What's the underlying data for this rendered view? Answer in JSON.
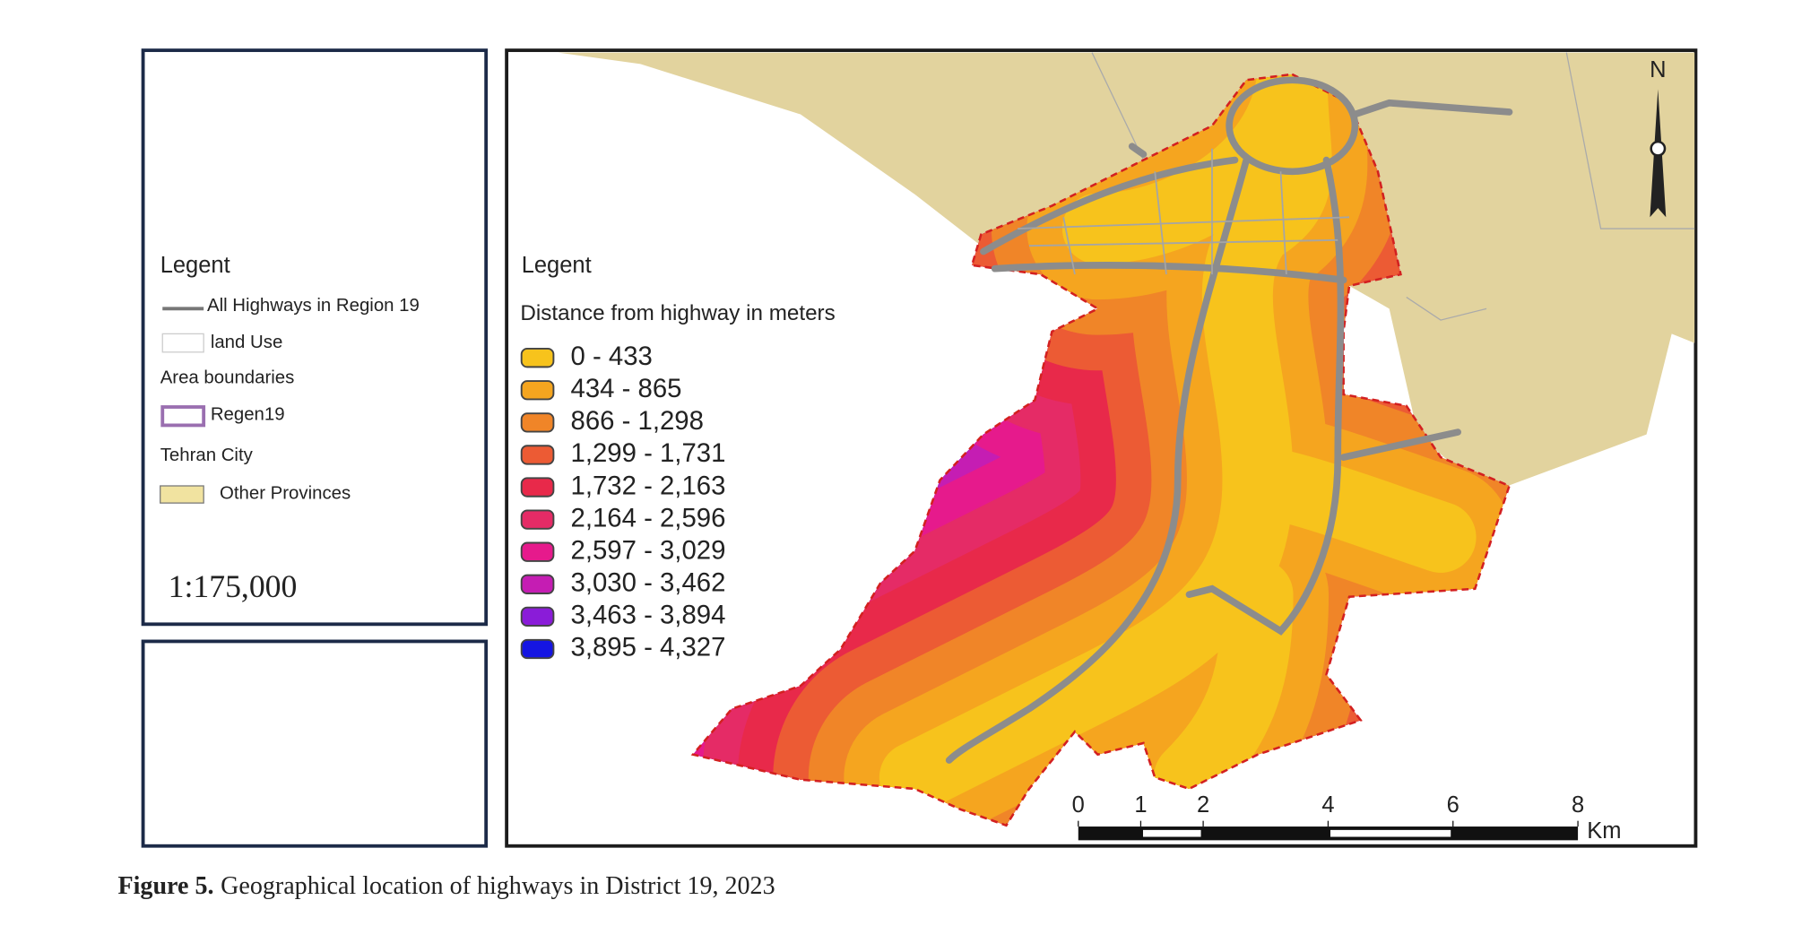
{
  "side_legend": {
    "title": "Legent",
    "items": [
      "All Highways in Region 19",
      "land Use",
      "Area boundaries",
      "Regen19",
      "Tehran City",
      "Other Provinces"
    ],
    "scale": "1:175,000"
  },
  "map_legend": {
    "title": "Legent",
    "subtitle": "Distance from highway in meters",
    "classes": [
      {
        "label": "0 - 433",
        "color": "#f7c31c"
      },
      {
        "label": "434 - 865",
        "color": "#f5a51f"
      },
      {
        "label": "866 - 1,298",
        "color": "#f08528"
      },
      {
        "label": "1,299 - 1,731",
        "color": "#ec5b34"
      },
      {
        "label": "1,732 - 2,163",
        "color": "#e8294a"
      },
      {
        "label": "2,164 - 2,596",
        "color": "#e52b66"
      },
      {
        "label": "2,597 - 3,029",
        "color": "#e61a8c"
      },
      {
        "label": "3,030 - 3,462",
        "color": "#c51db3"
      },
      {
        "label": "3,463 - 3,894",
        "color": "#8a1cd8"
      },
      {
        "label": "3,895 - 4,327",
        "color": "#1515e2"
      }
    ]
  },
  "north": "N",
  "scale_bar": {
    "ticks": [
      0,
      1,
      2,
      4,
      6,
      8
    ],
    "unit": "Km"
  },
  "caption": {
    "label": "Figure 5.",
    "text": "Geographical location of highways in District 19, 2023"
  }
}
